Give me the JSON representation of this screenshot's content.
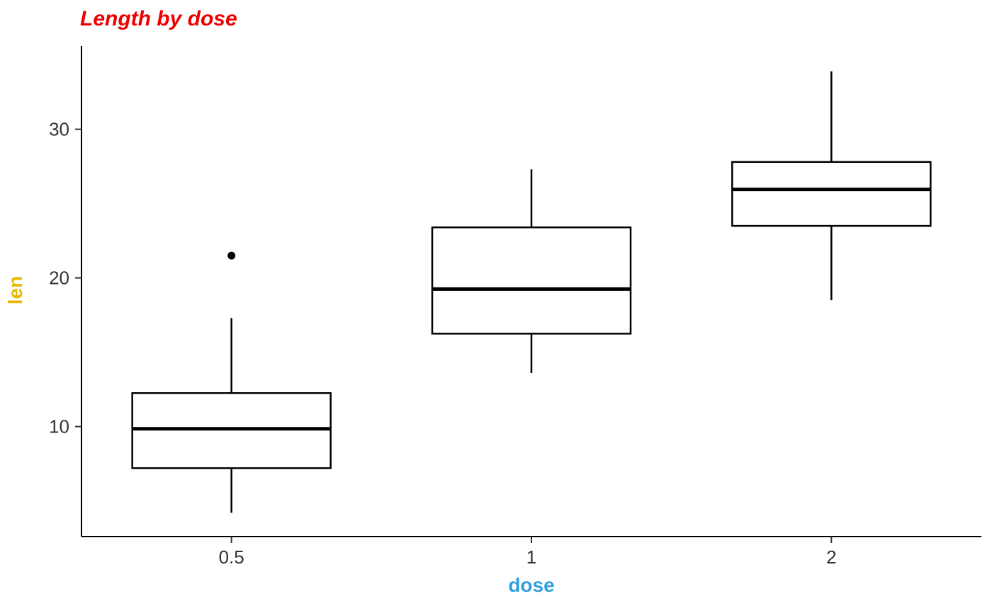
{
  "chart_data": {
    "type": "boxplot",
    "title": "Length by dose",
    "xlabel": "dose",
    "ylabel": "len",
    "categories": [
      "0.5",
      "1",
      "2"
    ],
    "y_ticks": [
      10,
      20,
      30
    ],
    "ylim": [
      2.6,
      35.6
    ],
    "grid": false,
    "legend": "none",
    "series": [
      {
        "category": "0.5",
        "whisker_min": 4.2,
        "q1": 7.2,
        "median": 9.85,
        "q3": 12.25,
        "whisker_max": 17.3,
        "outliers": [
          21.5
        ]
      },
      {
        "category": "1",
        "whisker_min": 13.6,
        "q1": 16.25,
        "median": 19.25,
        "q3": 23.4,
        "whisker_max": 27.3,
        "outliers": []
      },
      {
        "category": "2",
        "whisker_min": 18.5,
        "q1": 23.5,
        "median": 25.95,
        "q3": 27.8,
        "whisker_max": 33.9,
        "outliers": []
      }
    ],
    "colors": {
      "title": "#EC0000",
      "xlabel": "#2E9FDF",
      "ylabel": "#E7B800",
      "box_stroke": "#000000",
      "box_fill": "#ffffff",
      "axis_line": "#000000",
      "tick_text": "#333333"
    }
  }
}
